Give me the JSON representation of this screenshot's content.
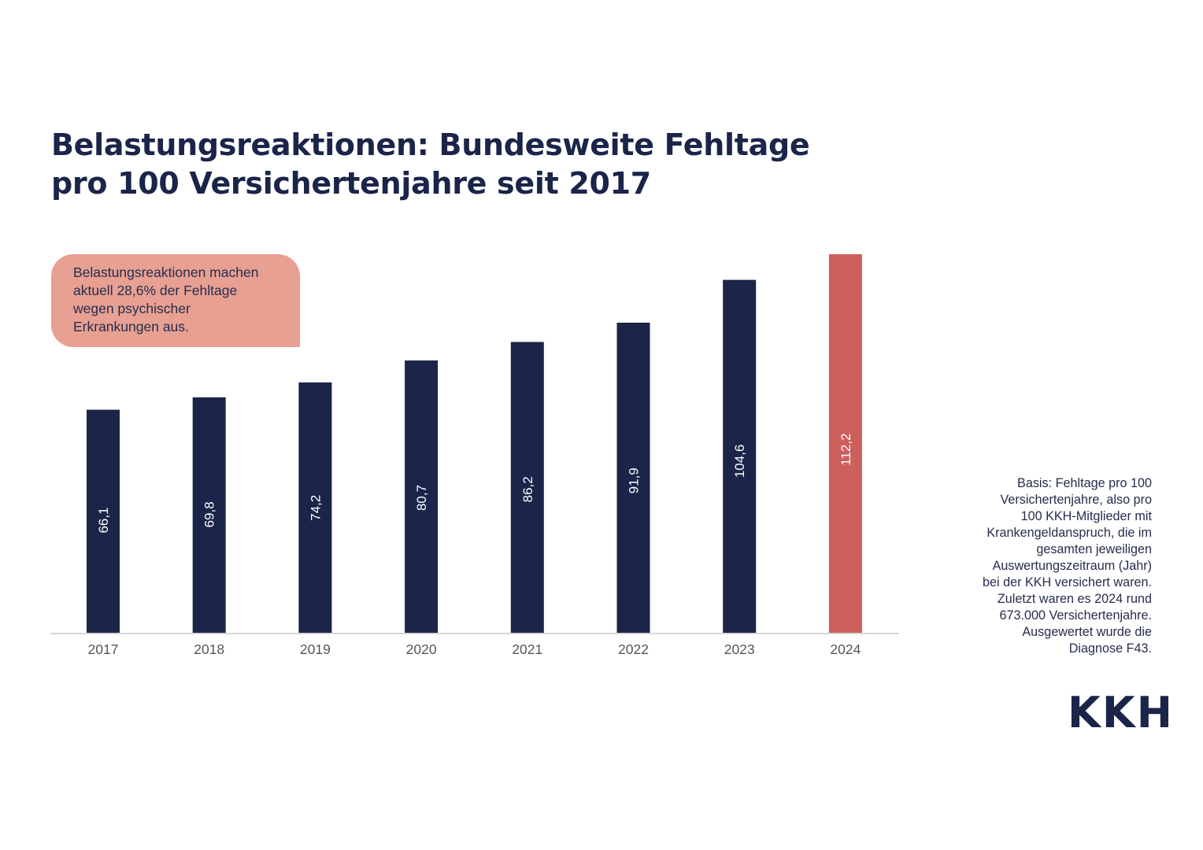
{
  "header": {
    "title_lines": [
      "Belastungsreaktionen: Bundesweite Fehltage",
      "pro 100 Versichertenjahre seit 2017"
    ]
  },
  "callout": {
    "lines": [
      "Belastungsreaktionen machen",
      "aktuell 28,6% der Fehltage",
      "wegen psychischer",
      "Erkrankungen aus."
    ],
    "color": "#e8a093"
  },
  "footnote": {
    "lines": [
      "Basis: Fehltage pro 100",
      "Versichertenjahre, also pro",
      "100 KKH-Mitglieder mit",
      "Krankengeldanspruch, die im",
      "gesamten jeweiligen",
      "Auswertungszeitraum (Jahr)",
      "bei der KKH versichert waren.",
      "Zuletzt waren es 2024 rund",
      "673.000 Versichertenjahre.",
      "Ausgewertet wurde die",
      "Diagnose F43."
    ]
  },
  "logo": {
    "text": "KKH",
    "color": "#1b2449"
  },
  "chart_data": {
    "type": "bar",
    "title": "Belastungsreaktionen: Bundesweite Fehltage pro 100 Versichertenjahre seit 2017",
    "xlabel": "",
    "ylabel": "",
    "ylim": [
      0,
      112.2
    ],
    "grid": false,
    "categories": [
      "2017",
      "2018",
      "2019",
      "2020",
      "2021",
      "2022",
      "2023",
      "2024"
    ],
    "values": [
      66.1,
      69.8,
      74.2,
      80.7,
      86.2,
      91.9,
      104.6,
      112.2
    ],
    "value_labels": [
      "66,1",
      "69,8",
      "74,2",
      "80,7",
      "86,2",
      "91,9",
      "104,6",
      "112,2"
    ],
    "colors": {
      "default": "#1b2449",
      "highlight": "#cd5f5d",
      "highlight_category": "2024",
      "axis": "#d8d8d8",
      "tick_text": "#555555"
    }
  }
}
